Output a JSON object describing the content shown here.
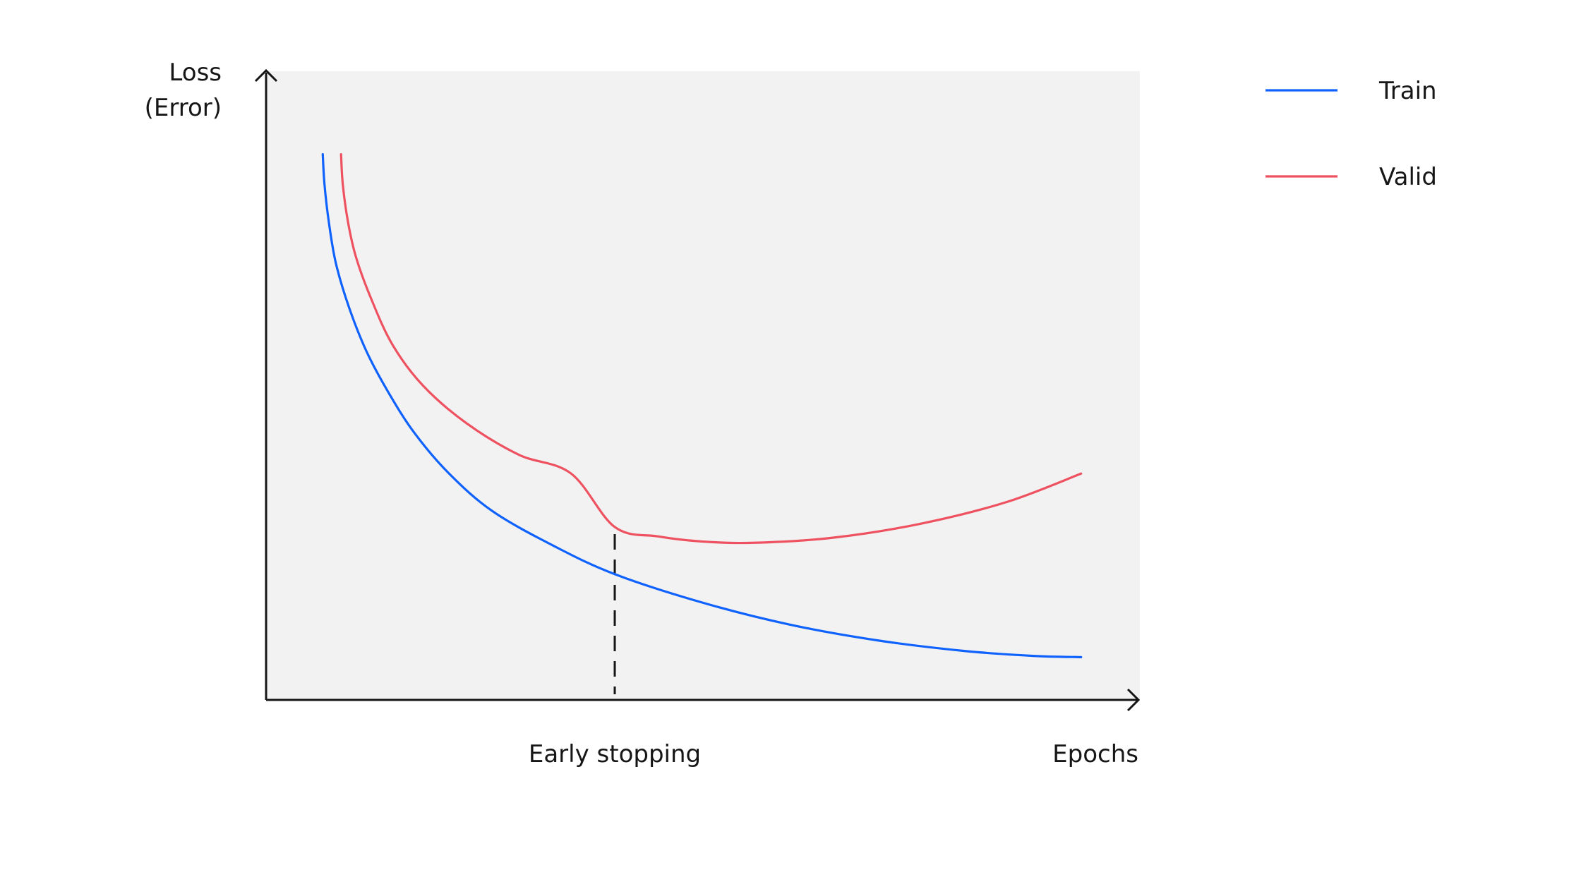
{
  "chart_data": {
    "type": "line",
    "x_label": "Epochs",
    "y_label_lines": [
      "Loss",
      "(Error)"
    ],
    "grid": false,
    "legend_position": "top-right",
    "annotation": {
      "label": "Early stopping",
      "x": 0.4
    },
    "x_range": [
      0,
      1
    ],
    "y_range": [
      0,
      1
    ],
    "series": [
      {
        "name": "Train",
        "color": "#0f62fe",
        "points": [
          [
            0.065,
            0.868
          ],
          [
            0.067,
            0.82
          ],
          [
            0.072,
            0.76
          ],
          [
            0.08,
            0.695
          ],
          [
            0.095,
            0.625
          ],
          [
            0.115,
            0.555
          ],
          [
            0.14,
            0.49
          ],
          [
            0.17,
            0.425
          ],
          [
            0.21,
            0.36
          ],
          [
            0.26,
            0.3
          ],
          [
            0.33,
            0.245
          ],
          [
            0.4,
            0.2
          ],
          [
            0.5,
            0.155
          ],
          [
            0.6,
            0.12
          ],
          [
            0.7,
            0.095
          ],
          [
            0.8,
            0.078
          ],
          [
            0.88,
            0.07
          ],
          [
            0.935,
            0.068
          ]
        ]
      },
      {
        "name": "Valid",
        "color": "#ee5260",
        "points": [
          [
            0.086,
            0.868
          ],
          [
            0.088,
            0.82
          ],
          [
            0.094,
            0.76
          ],
          [
            0.103,
            0.705
          ],
          [
            0.12,
            0.64
          ],
          [
            0.145,
            0.565
          ],
          [
            0.18,
            0.5
          ],
          [
            0.23,
            0.44
          ],
          [
            0.29,
            0.39
          ],
          [
            0.35,
            0.36
          ],
          [
            0.4,
            0.275
          ],
          [
            0.45,
            0.26
          ],
          [
            0.5,
            0.252
          ],
          [
            0.56,
            0.25
          ],
          [
            0.65,
            0.258
          ],
          [
            0.75,
            0.28
          ],
          [
            0.85,
            0.315
          ],
          [
            0.935,
            0.36
          ]
        ]
      }
    ]
  }
}
